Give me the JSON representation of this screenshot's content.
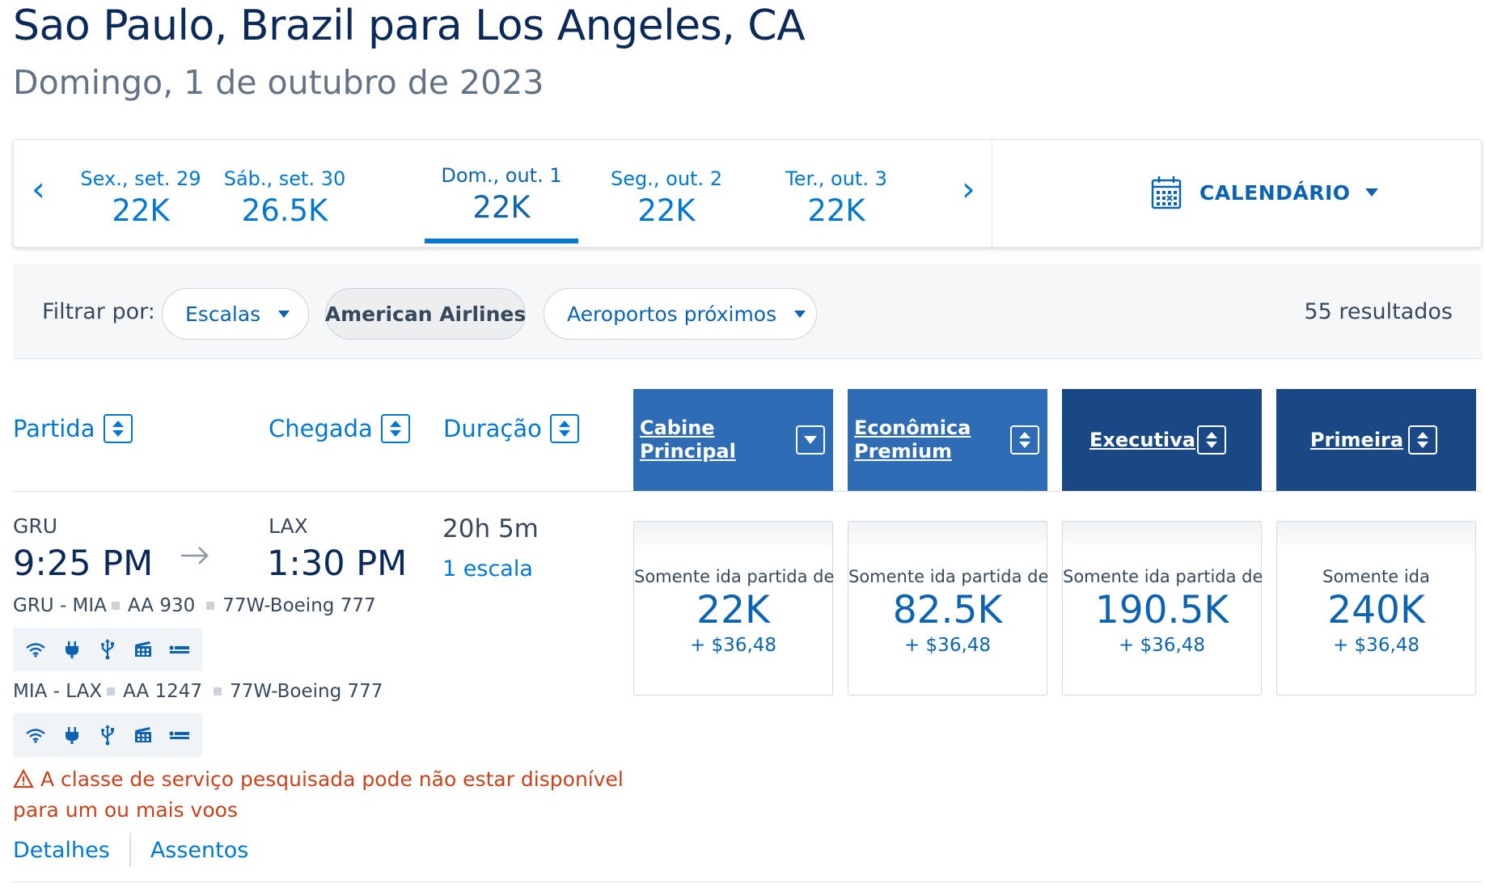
{
  "header": {
    "title": "Sao Paulo, Brazil para Los Angeles, CA",
    "subtitle": "Domingo, 1 de outubro de 2023"
  },
  "datebar": {
    "prev_icon": "chevron-left-icon",
    "next_icon": "chevron-right-icon",
    "prev": "‹",
    "next": "›",
    "days": [
      {
        "label": "Sex., set. 29",
        "price": "22K"
      },
      {
        "label": "Sáb., set. 30",
        "price": "26.5K"
      },
      {
        "label": "Dom., out. 1",
        "price": "22K",
        "selected": true
      },
      {
        "label": "Seg., out. 2",
        "price": "22K"
      },
      {
        "label": "Ter., out. 3",
        "price": "22K"
      }
    ],
    "calendar_label": "CALENDÁRIO",
    "calendar_icon": "calendar-icon"
  },
  "filters": {
    "label": "Filtrar por:",
    "escalas": "Escalas",
    "airline": "American Airlines",
    "aeroportos": "Aeroportos próximos",
    "results": "55 resultados"
  },
  "sort": {
    "partida": "Partida",
    "chegada": "Chegada",
    "duracao": "Duração"
  },
  "cabins": {
    "principal_l1": "Cabine",
    "principal_l2": "Principal",
    "premium_l1": "Econômica",
    "premium_l2": "Premium",
    "executiva": "Executiva",
    "primeira": "Primeira"
  },
  "flight": {
    "origin": "GRU",
    "depart_time": "9:25 PM",
    "destination": "LAX",
    "arrive_time": "1:30 PM",
    "duration": "20h 5m",
    "stops": "1 escala",
    "segments": [
      {
        "route": "GRU - MIA",
        "flight": "AA 930",
        "aircraft": "77W-Boeing 777"
      },
      {
        "route": "MIA - LAX",
        "flight": "AA 1247",
        "aircraft": "77W-Boeing 777"
      }
    ],
    "amenities": [
      "wifi-icon",
      "power-plug-icon",
      "usb-icon",
      "entertainment-icon",
      "lie-flat-seat-icon"
    ],
    "warning": "A classe de serviço pesquisada pode não estar disponível para um ou mais voos",
    "details": "Detalhes",
    "seats": "Assentos"
  },
  "fares": [
    {
      "label": "Somente ida partida de",
      "price": "22K",
      "tax": "+ $36,48"
    },
    {
      "label": "Somente ida partida de",
      "price": "82.5K",
      "tax": "+ $36,48"
    },
    {
      "label": "Somente ida partida de",
      "price": "190.5K",
      "tax": "+ $36,48"
    },
    {
      "label": "Somente ida",
      "price": "240K",
      "tax": "+ $36,48"
    }
  ],
  "colors": {
    "brand_blue": "#0078d2",
    "dark_navy": "#0b2a59",
    "cabin_light": "#2e6cb5",
    "cabin_dark": "#1a4885",
    "warning": "#c8421b"
  }
}
